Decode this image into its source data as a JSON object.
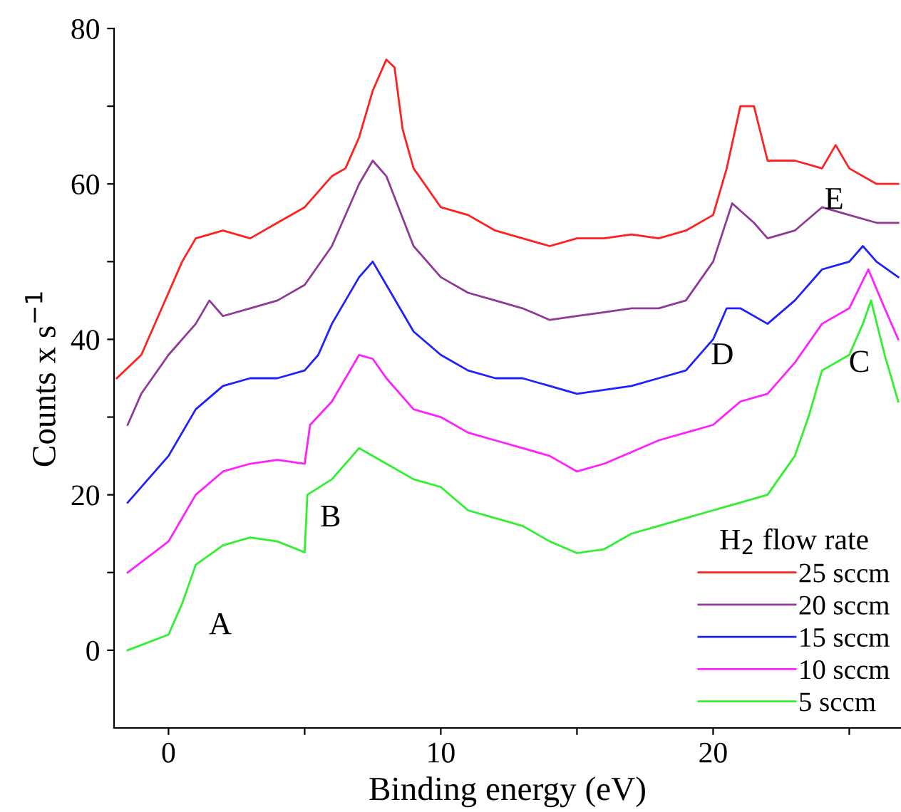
{
  "chart_data": {
    "type": "line",
    "xlabel": "Binding energy (eV)",
    "ylabel": "Counts x s$^{−1}$",
    "legend_title": "H$_{2}$ flow rate",
    "legend": "bottom right",
    "grid": false,
    "marker": "none",
    "line_style": "solid",
    "xlim": [
      -2,
      26.9
    ],
    "ylim": [
      -10,
      80
    ],
    "xticks": [
      0,
      {
        "value": 5,
        "label": null
      },
      10,
      {
        "value": 15,
        "label": null
      },
      20,
      {
        "value": 25,
        "label": null
      }
    ],
    "yticks": [
      0,
      {
        "value": 10,
        "label": null
      },
      20,
      {
        "value": 30,
        "label": null
      },
      40,
      {
        "value": 50,
        "label": null
      },
      60,
      {
        "value": 70,
        "label": null
      },
      80
    ],
    "series": [
      {
        "name": "25 sccm",
        "color": "#ff2020",
        "x": [
          -1.9,
          -1,
          0,
          0.5,
          1,
          2,
          3,
          4,
          5,
          6,
          6.5,
          7,
          7.5,
          8,
          8.3,
          8.6,
          9,
          10,
          11,
          12,
          13,
          14,
          15,
          16,
          17,
          18,
          19,
          20,
          20.5,
          21,
          21.5,
          22,
          23,
          24,
          24.5,
          25,
          26,
          26.8
        ],
        "values": [
          35,
          38,
          46,
          50,
          53,
          54,
          53,
          55,
          57,
          61,
          62,
          66,
          72,
          76,
          75,
          67,
          62,
          57,
          56,
          54,
          53,
          52,
          53,
          53,
          53.5,
          53,
          54,
          56,
          62,
          70,
          70,
          63,
          63,
          62,
          65,
          62,
          60,
          60
        ]
      },
      {
        "name": "20 sccm",
        "color": "#8e3a96",
        "x": [
          -1.5,
          -1,
          0,
          1,
          1.5,
          2,
          3,
          4,
          5,
          6,
          7,
          7.5,
          8,
          9,
          10,
          11,
          12,
          13,
          14,
          15,
          16,
          17,
          18,
          19,
          20,
          20.7,
          21.5,
          22,
          23,
          24,
          25,
          26,
          26.8
        ],
        "values": [
          29,
          33,
          38,
          42,
          45,
          43,
          44,
          45,
          47,
          52,
          60,
          63,
          61,
          52,
          48,
          46,
          45,
          44,
          42.5,
          43,
          43.5,
          44,
          44,
          45,
          50,
          57.5,
          55,
          53,
          54,
          57,
          56,
          55,
          55
        ]
      },
      {
        "name": "15 sccm",
        "color": "#2020ff",
        "x": [
          -1.5,
          0,
          1,
          2,
          3,
          4,
          5,
          5.5,
          6,
          7,
          7.5,
          8,
          9,
          10,
          11,
          12,
          13,
          14,
          15,
          16,
          17,
          18,
          19,
          20,
          20.5,
          21,
          22,
          23,
          24,
          25,
          25.5,
          26,
          26.8
        ],
        "values": [
          19,
          25,
          31,
          34,
          35,
          35,
          36,
          38,
          42,
          48,
          50,
          47,
          41,
          38,
          36,
          35,
          35,
          34,
          33,
          33.5,
          34,
          35,
          36,
          40,
          44,
          44,
          42,
          45,
          49,
          50,
          52,
          50,
          48
        ]
      },
      {
        "name": "10 sccm",
        "color": "#ff20ff",
        "x": [
          -1.5,
          0,
          1,
          2,
          3,
          4,
          5,
          5.2,
          6,
          7,
          7.5,
          8,
          9,
          10,
          11,
          12,
          13,
          14,
          15,
          16,
          17,
          18,
          19,
          20,
          21,
          22,
          23,
          24,
          25,
          25.7,
          26.3,
          26.8
        ],
        "values": [
          10,
          14,
          20,
          23,
          24,
          24.5,
          24,
          29,
          32,
          38,
          37.5,
          35,
          31,
          30,
          28,
          27,
          26,
          25,
          23,
          24,
          25.5,
          27,
          28,
          29,
          32,
          33,
          37,
          42,
          44,
          49,
          44,
          40
        ]
      },
      {
        "name": "5 sccm",
        "color": "#30f030",
        "x": [
          -1.5,
          0,
          0.5,
          1,
          2,
          3,
          4,
          5,
          5.1,
          6,
          7,
          8,
          9,
          10,
          11,
          12,
          13,
          14,
          15,
          16,
          17,
          18,
          19,
          20,
          21,
          22,
          23,
          23.5,
          24,
          25,
          25.5,
          25.8,
          26.3,
          26.8
        ],
        "values": [
          0,
          2,
          6,
          11,
          13.5,
          14.5,
          14,
          12.6,
          20,
          22,
          26,
          24,
          22,
          21,
          18,
          17,
          16,
          14,
          12.5,
          13,
          15,
          16,
          17,
          18,
          19,
          20,
          25,
          30,
          36,
          38,
          42,
          45,
          38,
          32
        ]
      }
    ],
    "annotations": [
      "A",
      "B",
      "C",
      "D",
      "E"
    ]
  }
}
